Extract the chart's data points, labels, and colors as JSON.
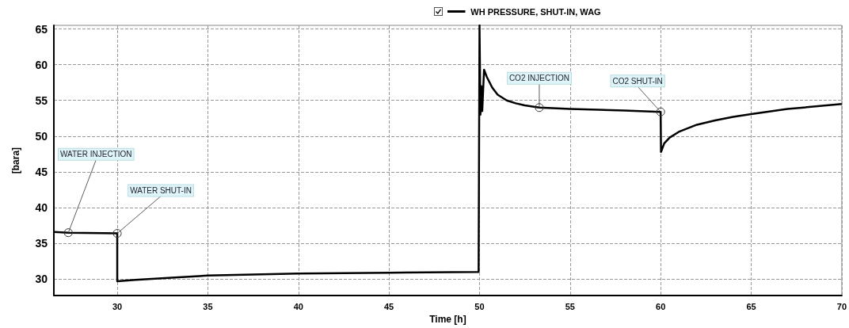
{
  "chart_data": {
    "type": "line",
    "xlabel": "Time [h]",
    "ylabel": "[bara]",
    "x": [
      26.5,
      27.3,
      30.0,
      30.0,
      31,
      33,
      35,
      40,
      45,
      49.95,
      50.0,
      50.05,
      50.1,
      50.15,
      50.25,
      50.4,
      50.7,
      51,
      51.5,
      52,
      52.5,
      53.3,
      55,
      58,
      60,
      60.02,
      60.2,
      60.5,
      61,
      61.5,
      62,
      63,
      64,
      65,
      67,
      70
    ],
    "series": [
      {
        "name": "WH PRESSURE, SHUT-IN, WAG",
        "color": "#000000",
        "values": [
          36.6,
          36.5,
          36.4,
          29.7,
          29.9,
          30.2,
          30.5,
          30.8,
          30.9,
          31.0,
          65.5,
          53.0,
          57,
          53.5,
          59.3,
          58.3,
          56.8,
          55.8,
          55.0,
          54.6,
          54.3,
          54.0,
          53.8,
          53.6,
          53.4,
          47.8,
          49.0,
          49.8,
          50.6,
          51.1,
          51.6,
          52.2,
          52.7,
          53.1,
          53.8,
          54.5
        ]
      }
    ],
    "xlim": [
      26.5,
      70
    ],
    "ylim": [
      27.7,
      65.5
    ],
    "xticks": [
      30,
      35,
      40,
      45,
      50,
      55,
      60,
      65,
      70
    ],
    "yticks": [
      30,
      35,
      40,
      45,
      50,
      55,
      60,
      65
    ],
    "grid": true,
    "legend": "top",
    "marker": "none",
    "line_style": "solid",
    "annotations": [
      {
        "text": "WATER INJECTION",
        "x": 27.3,
        "y": 36.5
      },
      {
        "text": "WATER SHUT-IN",
        "x": 30.0,
        "y": 36.4
      },
      {
        "text": "CO2 INJECTION",
        "x": 53.3,
        "y": 54.0
      },
      {
        "text": "CO2 SHUT-IN",
        "x": 60.0,
        "y": 53.4
      }
    ]
  }
}
